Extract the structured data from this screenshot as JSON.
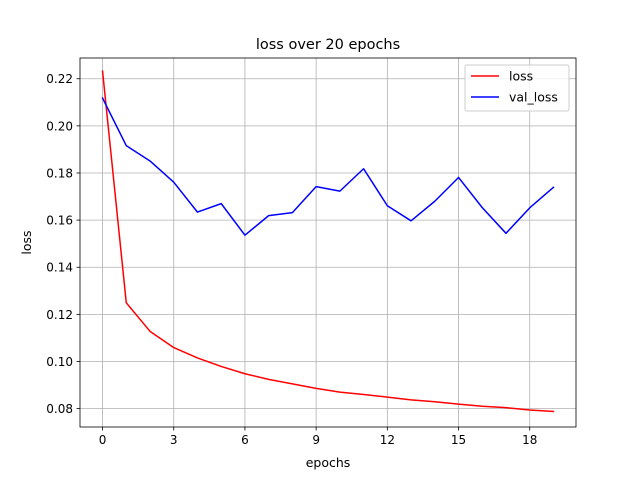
{
  "chart_data": {
    "type": "line",
    "title": "loss over 20 epochs",
    "xlabel": "epochs",
    "ylabel": "loss",
    "xlim": [
      -0.95,
      19.95
    ],
    "ylim": [
      0.0722,
      0.2288
    ],
    "xticks": [
      0,
      3,
      6,
      9,
      12,
      15,
      18
    ],
    "yticks": [
      0.08,
      0.1,
      0.12,
      0.14,
      0.16,
      0.18,
      0.2,
      0.22
    ],
    "ytick_labels": [
      "0.08",
      "0.10",
      "0.12",
      "0.14",
      "0.16",
      "0.18",
      "0.20",
      "0.22"
    ],
    "grid": true,
    "legend_position": "top-right",
    "x": [
      0,
      1,
      2,
      3,
      4,
      5,
      6,
      7,
      8,
      9,
      10,
      11,
      12,
      13,
      14,
      15,
      16,
      17,
      18,
      19
    ],
    "series": [
      {
        "name": "loss",
        "color": "#ff0000",
        "values": [
          0.2232,
          0.1249,
          0.1128,
          0.1059,
          0.1015,
          0.0979,
          0.0948,
          0.0924,
          0.0905,
          0.0886,
          0.087,
          0.086,
          0.0849,
          0.0837,
          0.0829,
          0.0819,
          0.081,
          0.0804,
          0.0794,
          0.0788
        ]
      },
      {
        "name": "val_loss",
        "color": "#0000ff",
        "values": [
          0.2118,
          0.1916,
          0.1851,
          0.1761,
          0.1634,
          0.167,
          0.1536,
          0.1619,
          0.1632,
          0.1742,
          0.1723,
          0.1818,
          0.1661,
          0.1597,
          0.168,
          0.1781,
          0.1653,
          0.1544,
          0.1652,
          0.1739
        ]
      }
    ]
  }
}
